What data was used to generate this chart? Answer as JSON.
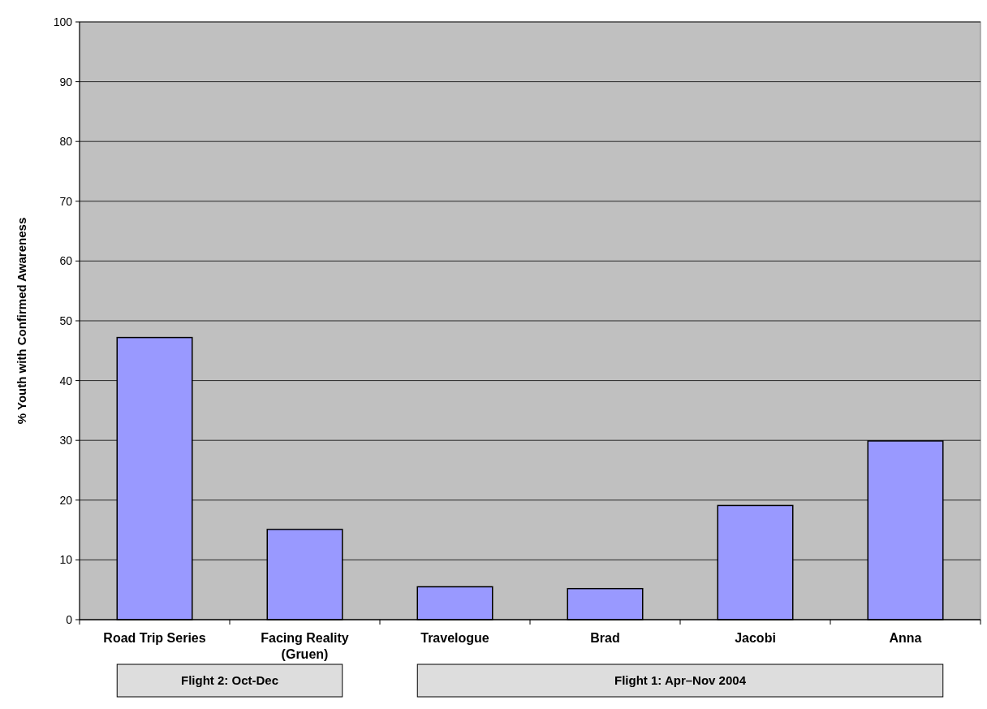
{
  "chart_data": {
    "type": "bar",
    "categories": [
      "Road Trip Series",
      "Facing Reality (Gruen)",
      "Travelogue",
      "Brad",
      "Jacobi",
      "Anna"
    ],
    "values": [
      47.2,
      15.1,
      5.5,
      5.2,
      19.1,
      29.9
    ],
    "color": "#9999ff",
    "ylabel": "% Youth with Confirmed Awareness",
    "ylim": [
      0,
      100
    ],
    "yticks": [
      0,
      10,
      20,
      30,
      40,
      50,
      60,
      70,
      80,
      90,
      100
    ],
    "grid": "y",
    "annotations": [
      "Flight 2: Oct-Dec",
      "Flight 1: Apr–Nov 2004"
    ]
  }
}
